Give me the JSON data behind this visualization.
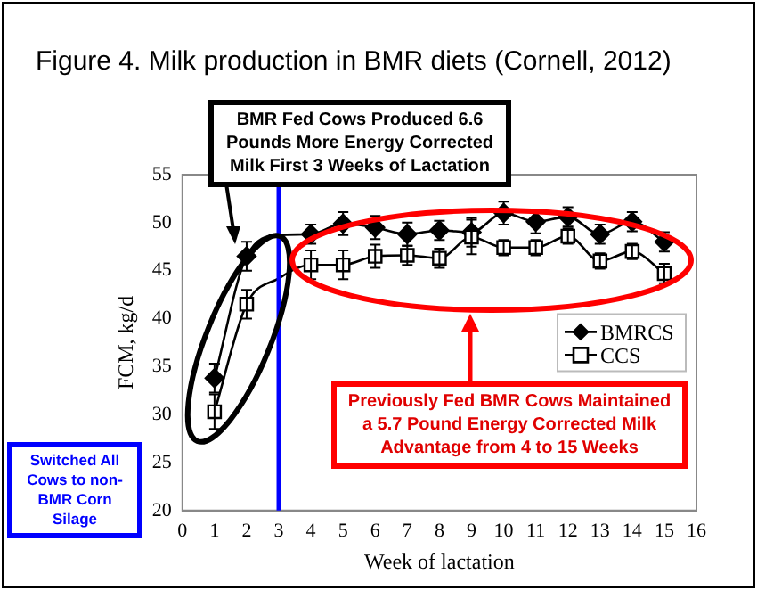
{
  "chart_data": {
    "type": "line",
    "title": "Figure 4.  Milk production in BMR diets (Cornell, 2012)",
    "xlabel": "Week of lactation",
    "ylabel": "FCM, kg/d",
    "x": [
      1,
      2,
      3,
      4,
      5,
      6,
      7,
      8,
      9,
      10,
      11,
      12,
      13,
      14,
      15
    ],
    "series": [
      {
        "name": "BMRCS",
        "color": "#000000",
        "marker": "diamond",
        "values": [
          33.8,
          46.5,
          48.7,
          48.8,
          49.9,
          49.5,
          48.8,
          49.2,
          49.0,
          51.0,
          50.1,
          50.6,
          48.8,
          50.1,
          48.0
        ],
        "errors": [
          1.5,
          1.5,
          null,
          1.0,
          1.2,
          1.2,
          1.2,
          1.0,
          1.5,
          1.2,
          1.2,
          1.0,
          1.0,
          1.0,
          1.0
        ]
      },
      {
        "name": "CCS",
        "color": "#000000",
        "marker": "square",
        "values": [
          30.3,
          41.5,
          44.2,
          45.6,
          45.6,
          46.5,
          46.6,
          46.3,
          48.5,
          47.4,
          47.4,
          48.6,
          46.0,
          47.0,
          44.7
        ],
        "errors": [
          1.8,
          1.5,
          null,
          1.5,
          1.5,
          1.2,
          1.0,
          1.0,
          1.8,
          0.8,
          0.8,
          0.8,
          0.8,
          0.8,
          1.0
        ]
      }
    ],
    "xlim": [
      0,
      16
    ],
    "xticks": [
      0,
      1,
      2,
      3,
      4,
      5,
      6,
      7,
      8,
      9,
      10,
      11,
      12,
      13,
      14,
      15,
      16
    ],
    "ylim": [
      20,
      55
    ],
    "yticks": [
      20,
      25,
      30,
      35,
      40,
      45,
      50,
      55
    ],
    "ref_lines": [
      {
        "axis": "x",
        "value": 3,
        "label": "Switched All Cows to non-BMR Corn Silage",
        "color": "#0000ff"
      }
    ],
    "annotations": [
      "BMR Fed Cows Produced 6.6 Pounds More Energy Corrected Milk First 3 Weeks of Lactation",
      "Previously Fed BMR Cows Maintained a 5.7 Pound Energy Corrected Milk Advantage from 4 to 15 Weeks"
    ],
    "legend": "right",
    "grid": false,
    "line_style": "solid"
  }
}
